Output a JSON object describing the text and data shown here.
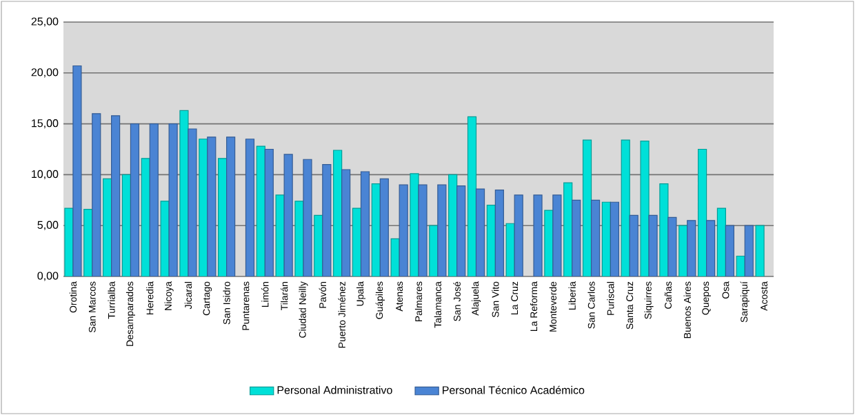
{
  "chart_data": {
    "type": "bar",
    "categories": [
      "Orotina",
      "San Marcos",
      "Turrialba",
      "Desamparados",
      "Heredia",
      "Nicoya",
      "Jicaral",
      "Cartago",
      "San Isidro",
      "Puntarenas",
      "Limón",
      "Tilarán",
      "Ciudad Neilly",
      "Pavón",
      "Puerto Jiménez",
      "Upala",
      "Guápiles",
      "Atenas",
      "Palmares",
      "Talamanca",
      "San José",
      "Alajuela",
      "San Vito",
      "La Cruz",
      "La Reforma",
      "Monteverde",
      "Liberia",
      "San Carlos",
      "Puriscal",
      "Santa Cruz",
      "Siquirres",
      "Cañas",
      "Buenos Aires",
      "Quepos",
      "Osa",
      "Sarapiquí",
      "Acosta"
    ],
    "series": [
      {
        "name": "Personal Administrativo",
        "color": "#00e0d8",
        "values": [
          6.7,
          6.6,
          9.6,
          10.0,
          11.6,
          7.4,
          16.3,
          13.5,
          11.6,
          null,
          12.8,
          8.0,
          7.4,
          6.0,
          12.4,
          6.7,
          9.1,
          3.7,
          10.1,
          5.0,
          10.0,
          15.7,
          7.0,
          5.2,
          null,
          6.5,
          9.2,
          13.4,
          7.3,
          13.4,
          13.3,
          9.1,
          5.0,
          12.5,
          6.7,
          2.0,
          5.0
        ]
      },
      {
        "name": "Personal Técnico Académico",
        "color": "#4a84d4",
        "values": [
          20.7,
          16.0,
          15.8,
          15.0,
          15.0,
          15.0,
          14.5,
          13.7,
          13.7,
          13.5,
          12.5,
          12.0,
          11.5,
          11.0,
          10.5,
          10.3,
          9.6,
          9.0,
          9.0,
          9.0,
          8.9,
          8.6,
          8.5,
          8.0,
          8.0,
          8.0,
          7.5,
          7.5,
          7.3,
          6.0,
          6.0,
          5.8,
          5.5,
          5.5,
          5.0,
          5.0,
          null
        ]
      }
    ],
    "ylim": [
      0,
      25
    ],
    "yticks": [
      {
        "value": 0,
        "label": "0,00"
      },
      {
        "value": 5,
        "label": "5,00"
      },
      {
        "value": 10,
        "label": "10,00"
      },
      {
        "value": 15,
        "label": "15,00"
      },
      {
        "value": 20,
        "label": "20,00"
      },
      {
        "value": 25,
        "label": "25,00"
      }
    ],
    "grid": "y",
    "legend": "bottom"
  }
}
